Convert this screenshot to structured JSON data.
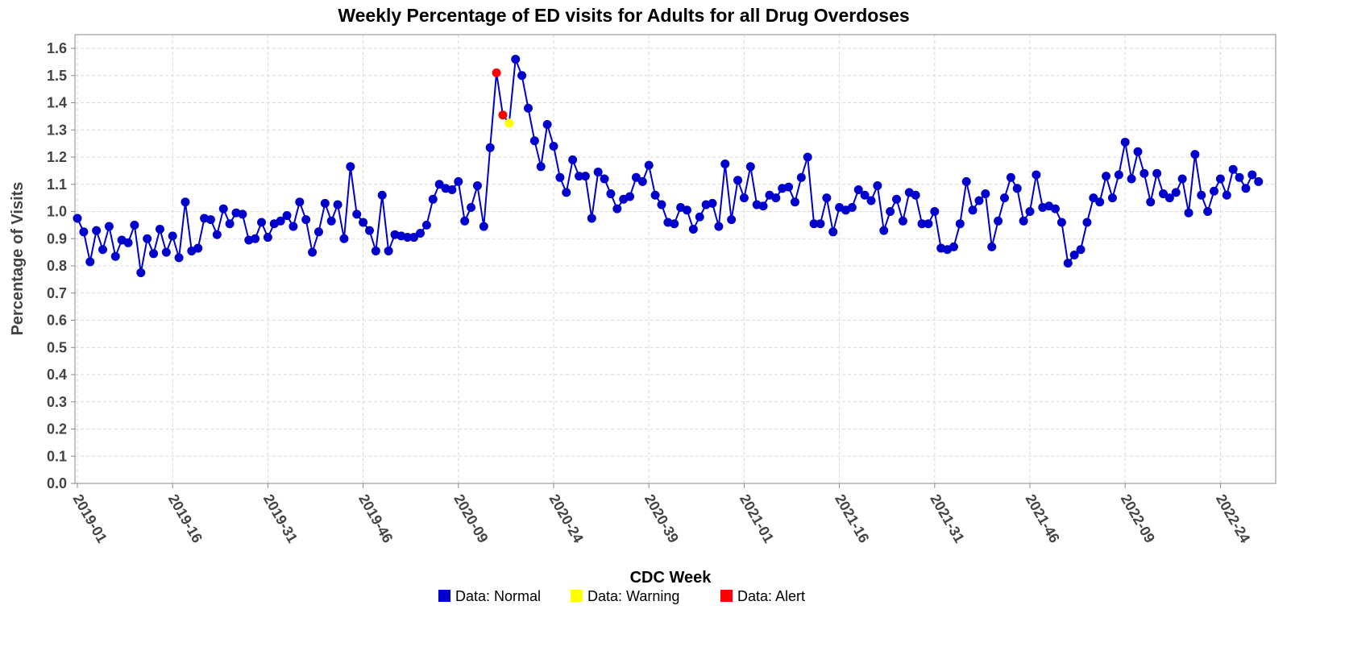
{
  "chart_data": {
    "type": "line",
    "title": "Weekly Percentage of ED visits for Adults for all Drug Overdoses",
    "xlabel": "CDC Week",
    "ylabel": "Percentage of Visits",
    "ylim": [
      0,
      1.65
    ],
    "yticks": [
      "0.0",
      "0.1",
      "0.2",
      "0.3",
      "0.4",
      "0.5",
      "0.6",
      "0.7",
      "0.8",
      "0.9",
      "1.0",
      "1.1",
      "1.2",
      "1.3",
      "1.4",
      "1.5",
      "1.6"
    ],
    "xtick_labels": [
      "2019-01",
      "2019-16",
      "2019-31",
      "2019-46",
      "2020-09",
      "2020-24",
      "2020-39",
      "2021-01",
      "2021-16",
      "2021-31",
      "2021-46",
      "2022-09",
      "2022-24"
    ],
    "grid": true,
    "legend_position": "bottom-center",
    "colors": {
      "normal": "#0000cc",
      "warning": "#ffff00",
      "alert": "#ff0000",
      "line": "#0000cc"
    },
    "legend": [
      {
        "label": "Data: Normal",
        "status": "normal"
      },
      {
        "label": "Data: Warning",
        "status": "warning"
      },
      {
        "label": "Data: Alert",
        "status": "alert"
      }
    ],
    "series": [
      {
        "values": [
          0.975,
          0.925,
          0.815,
          0.93,
          0.86,
          0.945,
          0.835,
          0.895,
          0.885,
          0.95,
          0.775,
          0.9,
          0.845,
          0.935,
          0.85,
          0.91,
          0.83,
          1.035,
          0.855,
          0.865,
          0.975,
          0.97,
          0.915,
          1.01,
          0.955,
          0.995,
          0.99,
          0.895,
          0.9,
          0.96,
          0.905,
          0.955,
          0.965,
          0.985,
          0.945,
          1.035,
          0.97,
          0.85,
          0.925,
          1.03,
          0.965,
          1.025,
          0.9,
          1.165,
          0.99,
          0.96,
          0.93,
          0.855,
          1.06,
          0.855,
          0.915,
          0.91,
          0.905,
          0.905,
          0.92,
          0.95,
          1.045,
          1.1,
          1.085,
          1.08,
          1.11,
          0.965,
          1.015,
          1.095,
          0.945,
          1.235,
          1.51,
          1.355,
          1.325,
          1.56,
          1.5,
          1.38,
          1.26,
          1.165,
          1.32,
          1.24,
          1.125,
          1.07,
          1.19,
          1.13,
          1.13,
          0.975,
          1.145,
          1.12,
          1.065,
          1.01,
          1.045,
          1.055,
          1.125,
          1.11,
          1.17,
          1.06,
          1.025,
          0.96,
          0.955,
          1.015,
          1.005,
          0.935,
          0.98,
          1.025,
          1.03,
          0.945,
          1.175,
          0.97,
          1.115,
          1.05,
          1.165,
          1.025,
          1.02,
          1.06,
          1.05,
          1.085,
          1.09,
          1.035,
          1.125,
          1.2,
          0.955,
          0.955,
          1.05,
          0.925,
          1.015,
          1.005,
          1.015,
          1.08,
          1.06,
          1.04,
          1.095,
          0.93,
          1.0,
          1.045,
          0.965,
          1.07,
          1.06,
          0.955,
          0.955,
          1.0,
          0.865,
          0.86,
          0.87,
          0.955,
          1.11,
          1.005,
          1.04,
          1.065,
          0.87,
          0.965,
          1.05,
          1.125,
          1.085,
          0.965,
          1.0,
          1.135,
          1.015,
          1.02,
          1.01,
          0.96,
          0.81,
          0.84,
          0.86,
          0.96,
          1.05,
          1.035,
          1.13,
          1.05,
          1.135,
          1.255,
          1.12,
          1.22,
          1.14,
          1.035,
          1.14,
          1.065,
          1.05,
          1.07,
          1.12,
          0.995,
          1.21,
          1.06,
          1.0,
          1.075,
          1.12,
          1.06,
          1.155,
          1.125,
          1.085,
          1.135,
          1.11
        ],
        "status": [
          "normal",
          "normal",
          "normal",
          "normal",
          "normal",
          "normal",
          "normal",
          "normal",
          "normal",
          "normal",
          "normal",
          "normal",
          "normal",
          "normal",
          "normal",
          "normal",
          "normal",
          "normal",
          "normal",
          "normal",
          "normal",
          "normal",
          "normal",
          "normal",
          "normal",
          "normal",
          "normal",
          "normal",
          "normal",
          "normal",
          "normal",
          "normal",
          "normal",
          "normal",
          "normal",
          "normal",
          "normal",
          "normal",
          "normal",
          "normal",
          "normal",
          "normal",
          "normal",
          "normal",
          "normal",
          "normal",
          "normal",
          "normal",
          "normal",
          "normal",
          "normal",
          "normal",
          "normal",
          "normal",
          "normal",
          "normal",
          "normal",
          "normal",
          "normal",
          "normal",
          "normal",
          "normal",
          "normal",
          "normal",
          "normal",
          "normal",
          "alert",
          "alert",
          "warning",
          "normal",
          "normal",
          "normal",
          "normal",
          "normal",
          "normal",
          "normal",
          "normal",
          "normal",
          "normal",
          "normal",
          "normal",
          "normal",
          "normal",
          "normal",
          "normal",
          "normal",
          "normal",
          "normal",
          "normal",
          "normal",
          "normal",
          "normal",
          "normal",
          "normal",
          "normal",
          "normal",
          "normal",
          "normal",
          "normal",
          "normal",
          "normal",
          "normal",
          "normal",
          "normal",
          "normal",
          "normal",
          "normal",
          "normal",
          "normal",
          "normal",
          "normal",
          "normal",
          "normal",
          "normal",
          "normal",
          "normal",
          "normal",
          "normal",
          "normal",
          "normal",
          "normal",
          "normal",
          "normal",
          "normal",
          "normal",
          "normal",
          "normal",
          "normal",
          "normal",
          "normal",
          "normal",
          "normal",
          "normal",
          "normal",
          "normal",
          "normal",
          "normal",
          "normal",
          "normal",
          "normal",
          "normal",
          "normal",
          "normal",
          "normal",
          "normal",
          "normal",
          "normal",
          "normal",
          "normal",
          "normal",
          "normal",
          "normal",
          "normal",
          "normal",
          "normal",
          "normal",
          "normal",
          "normal",
          "normal",
          "normal",
          "normal",
          "normal",
          "normal",
          "normal",
          "normal",
          "normal",
          "normal",
          "normal",
          "normal",
          "normal",
          "normal",
          "normal",
          "normal",
          "normal",
          "normal",
          "normal",
          "normal",
          "normal",
          "normal",
          "normal",
          "normal",
          "normal",
          "normal",
          "normal",
          "normal",
          "normal",
          "normal",
          "normal",
          "normal",
          "normal",
          "normal",
          "normal"
        ]
      }
    ]
  }
}
